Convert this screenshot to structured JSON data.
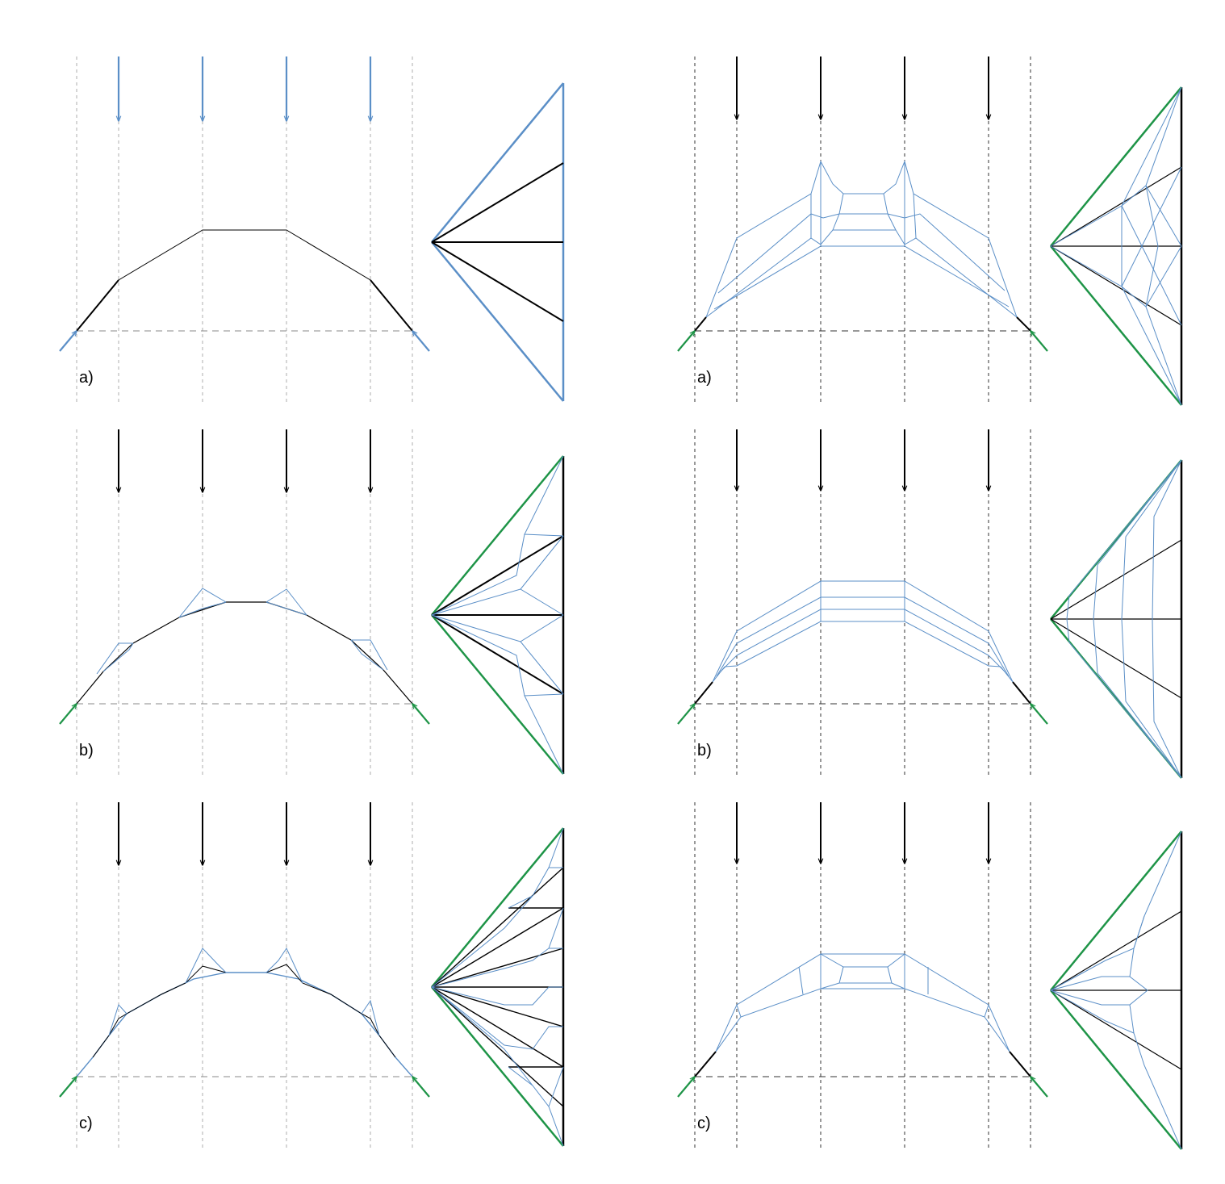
{
  "figure": {
    "colors": {
      "force": "#5b8fc7",
      "thrust": "#1e9447",
      "ink": "#000000",
      "guide": "#999999"
    },
    "left_column": {
      "panels": [
        {
          "label": "a)",
          "style": "blue-loads"
        },
        {
          "label": "b)",
          "style": "black-loads"
        },
        {
          "label": "c)",
          "style": "black-loads"
        }
      ]
    },
    "right_column": {
      "panels": [
        {
          "label": "a)"
        },
        {
          "label": "b)"
        },
        {
          "label": "c)"
        }
      ]
    }
  }
}
